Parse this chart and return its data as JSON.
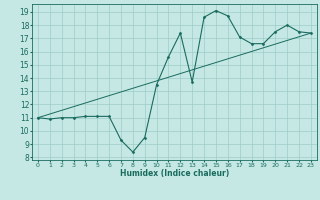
{
  "xlabel": "Humidex (Indice chaleur)",
  "ylabel": "",
  "bg_color": "#c5e8e5",
  "grid_color": "#9fccc8",
  "line_color": "#1a6b5e",
  "xlim": [
    -0.5,
    23.5
  ],
  "ylim": [
    7.8,
    19.6
  ],
  "yticks": [
    8,
    9,
    10,
    11,
    12,
    13,
    14,
    15,
    16,
    17,
    18,
    19
  ],
  "xticks": [
    0,
    1,
    2,
    3,
    4,
    5,
    6,
    7,
    8,
    9,
    10,
    11,
    12,
    13,
    14,
    15,
    16,
    17,
    18,
    19,
    20,
    21,
    22,
    23
  ],
  "curve_x": [
    0,
    1,
    2,
    3,
    4,
    5,
    6,
    7,
    8,
    9,
    10,
    11,
    12,
    13,
    14,
    15,
    16,
    17,
    18,
    19,
    20,
    21,
    22,
    23
  ],
  "curve_y": [
    11.0,
    10.9,
    11.0,
    11.0,
    11.1,
    11.1,
    11.1,
    9.3,
    8.4,
    9.5,
    13.5,
    15.6,
    17.4,
    13.7,
    18.6,
    19.1,
    18.7,
    17.1,
    16.6,
    16.6,
    17.5,
    18.0,
    17.5,
    17.4
  ],
  "trend_x": [
    0,
    23
  ],
  "trend_y": [
    11.0,
    17.4
  ]
}
